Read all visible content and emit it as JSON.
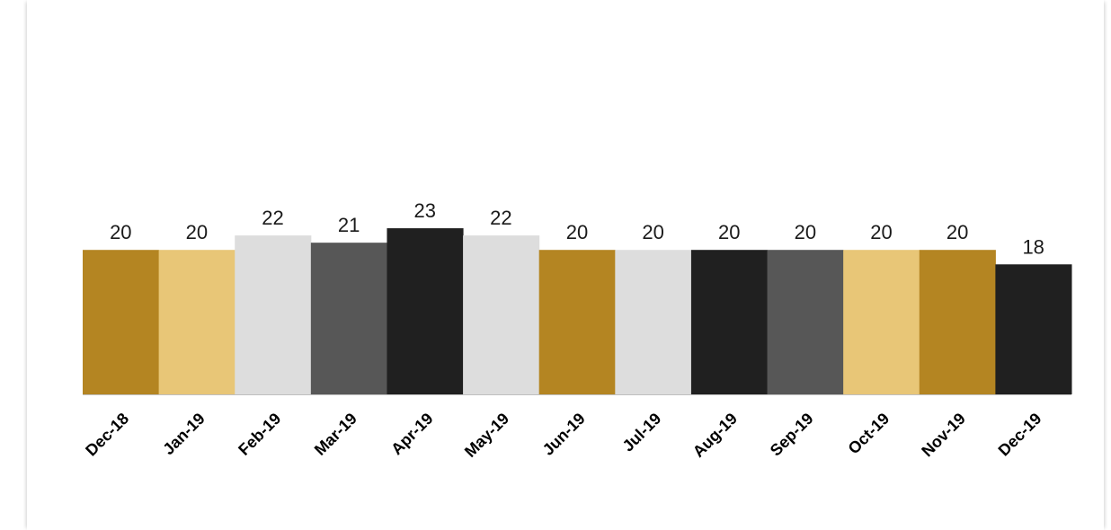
{
  "chart_data": {
    "type": "bar",
    "categories": [
      "Dec-18",
      "Jan-19",
      "Feb-19",
      "Mar-19",
      "Apr-19",
      "May-19",
      "Jun-19",
      "Jul-19",
      "Aug-19",
      "Sep-19",
      "Oct-19",
      "Nov-19",
      "Dec-19"
    ],
    "values": [
      20,
      20,
      22,
      21,
      23,
      22,
      20,
      20,
      20,
      20,
      20,
      20,
      18
    ],
    "colors": [
      "#b48522",
      "#e8c677",
      "#dddddd",
      "#575757",
      "#202020",
      "#dddddd",
      "#b48522",
      "#dddddd",
      "#202020",
      "#575757",
      "#e8c677",
      "#b48522",
      "#202020"
    ],
    "ylim": [
      0,
      23
    ],
    "grid": false,
    "legend": "none",
    "data_labels": true
  }
}
